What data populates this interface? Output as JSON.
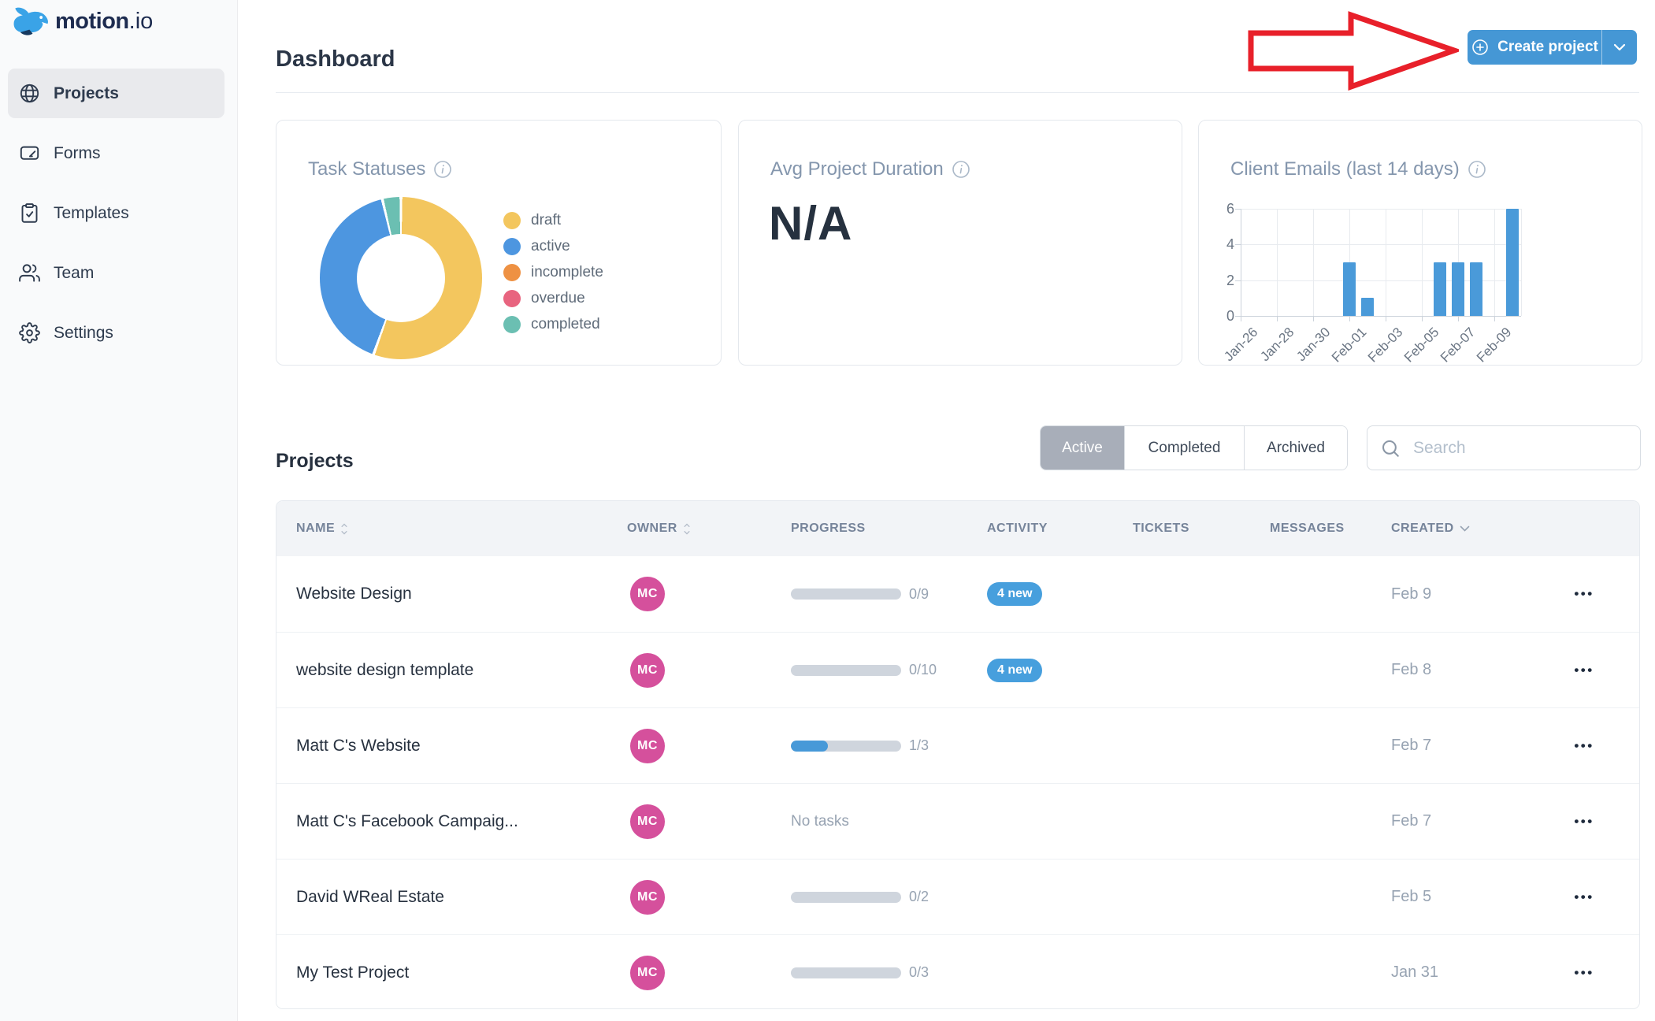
{
  "app": {
    "logo_primary": "motion",
    "logo_secondary": ".io"
  },
  "sidebar": {
    "items": [
      {
        "label": "Projects",
        "icon": "globe-icon",
        "active": true
      },
      {
        "label": "Forms",
        "icon": "form-icon",
        "active": false
      },
      {
        "label": "Templates",
        "icon": "clipboard-check-icon",
        "active": false
      },
      {
        "label": "Team",
        "icon": "users-icon",
        "active": false
      },
      {
        "label": "Settings",
        "icon": "gear-icon",
        "active": false
      }
    ]
  },
  "header": {
    "title": "Dashboard",
    "create_button": {
      "label": "Create project",
      "color": "#4597d5"
    },
    "annotation": {
      "shape": "arrow-right",
      "color": "#e8202a"
    }
  },
  "cards": {
    "task_statuses": {
      "title": "Task Statuses"
    },
    "avg_project_duration": {
      "title": "Avg Project Duration",
      "value": "N/A"
    },
    "client_emails": {
      "title": "Client Emails (last 14 days)"
    }
  },
  "chart_data": [
    {
      "type": "pie",
      "variant": "donut",
      "title": "Task Statuses",
      "labels": [
        "draft",
        "active",
        "incomplete",
        "overdue",
        "completed"
      ],
      "values_pct": [
        55.5,
        40.8,
        0,
        0,
        3.7
      ],
      "colors": [
        "#f3c65e",
        "#4d96e0",
        "#ee9143",
        "#e8647f",
        "#6bbfb2"
      ],
      "legend_position": "right"
    },
    {
      "type": "bar",
      "title": "Client Emails (last 14 days)",
      "xlabel": "",
      "ylabel": "",
      "ylim": [
        0,
        6
      ],
      "yticks": [
        0,
        2,
        4,
        6
      ],
      "x_tick_labels": [
        "Jan-26",
        "Jan-28",
        "Jan-30",
        "Feb-01",
        "Feb-03",
        "Feb-05",
        "Feb-07",
        "Feb-09"
      ],
      "x_tick_day_indexes": [
        0,
        2,
        4,
        6,
        8,
        10,
        12,
        14
      ],
      "days_span": 15.5,
      "bars": [
        {
          "date": "Feb-01",
          "day_index": 6,
          "value": 3
        },
        {
          "date": "Feb-02",
          "day_index": 7,
          "value": 1
        },
        {
          "date": "Feb-06",
          "day_index": 11,
          "value": 3
        },
        {
          "date": "Feb-07",
          "day_index": 12,
          "value": 3
        },
        {
          "date": "Feb-08",
          "day_index": 13,
          "value": 3
        },
        {
          "date": "Feb-10",
          "day_index": 15,
          "value": 6
        }
      ],
      "bar_color": "#4a9ad9",
      "grid": true
    }
  ],
  "projects": {
    "heading": "Projects",
    "tabs": [
      {
        "label": "Active",
        "selected": true
      },
      {
        "label": "Completed",
        "selected": false
      },
      {
        "label": "Archived",
        "selected": false
      }
    ],
    "search": {
      "placeholder": "Search"
    },
    "table": {
      "columns": [
        {
          "label": "NAME",
          "sort_icon": "sort-updown-icon"
        },
        {
          "label": "OWNER",
          "sort_icon": "sort-updown-icon"
        },
        {
          "label": "PROGRESS"
        },
        {
          "label": "ACTIVITY"
        },
        {
          "label": "TICKETS"
        },
        {
          "label": "MESSAGES"
        },
        {
          "label": "CREATED",
          "sort_icon": "chevron-down-icon"
        }
      ],
      "avatar_color": "#d5509c",
      "row_menu_glyph": "•••",
      "rows": [
        {
          "name": "Website Design",
          "owner_initials": "MC",
          "progress_label": "0/9",
          "progress_done": 0,
          "progress_total": 9,
          "activity_badge": "4 new",
          "created": "Feb 9"
        },
        {
          "name": "website design template",
          "owner_initials": "MC",
          "progress_label": "0/10",
          "progress_done": 0,
          "progress_total": 10,
          "activity_badge": "4 new",
          "created": "Feb 8"
        },
        {
          "name": "Matt C's Website",
          "owner_initials": "MC",
          "progress_label": "1/3",
          "progress_done": 1,
          "progress_total": 3,
          "activity_badge": null,
          "created": "Feb 7"
        },
        {
          "name": "Matt C's Facebook Campaig...",
          "owner_initials": "MC",
          "progress_label": null,
          "no_tasks_text": "No tasks",
          "activity_badge": null,
          "created": "Feb 7"
        },
        {
          "name": "David WReal Estate",
          "owner_initials": "MC",
          "progress_label": "0/2",
          "progress_done": 0,
          "progress_total": 2,
          "activity_badge": null,
          "created": "Feb 5"
        },
        {
          "name": "My Test Project",
          "owner_initials": "MC",
          "progress_label": "0/3",
          "progress_done": 0,
          "progress_total": 3,
          "activity_badge": null,
          "created": "Jan 31"
        }
      ]
    }
  }
}
